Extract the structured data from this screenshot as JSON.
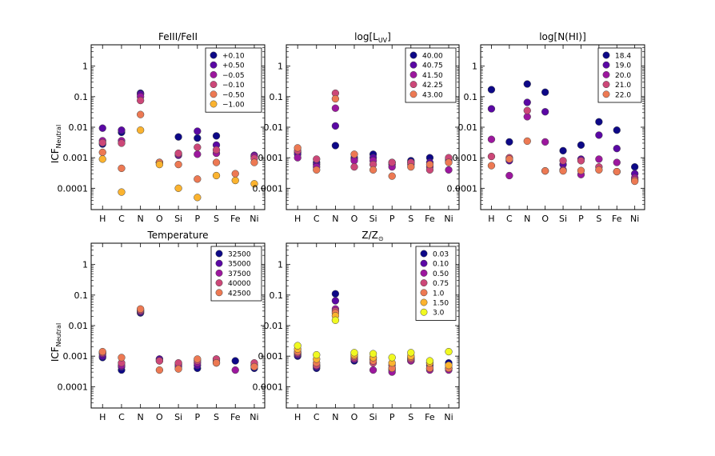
{
  "figure": {
    "ylabel_main": "ICF",
    "ylabel_sub": "Neutral"
  },
  "chart_data": [
    {
      "type": "scatter",
      "title": "FeIII/FeII",
      "categories": [
        "H",
        "C",
        "N",
        "O",
        "Si",
        "P",
        "S",
        "Fe",
        "Ni"
      ],
      "ylim": [
        2e-05,
        5
      ],
      "yscale": "log",
      "yticks": [
        "1",
        "0.1",
        "0.01",
        "0.001",
        "0.0001"
      ],
      "ytick_values": [
        1,
        0.1,
        0.01,
        0.001,
        0.0001
      ],
      "legend_loc": "top-right",
      "series": [
        {
          "name": "+0.10",
          "color": "#0d0887",
          "values": [
            0.0028,
            0.0068,
            0.13,
            0.0007,
            0.0048,
            0.0044,
            0.0052,
            null,
            0.0011
          ]
        },
        {
          "name": "+0.50",
          "color": "#5a08a4",
          "values": [
            0.0093,
            0.008,
            0.12,
            0.0007,
            0.0012,
            0.0074,
            0.0026,
            null,
            0.0012
          ]
        },
        {
          "name": "−0.05",
          "color": "#9c179e",
          "values": [
            0.0036,
            0.0036,
            0.1,
            0.0007,
            0.0013,
            0.0013,
            0.0014,
            null,
            0.0011
          ]
        },
        {
          "name": "−0.10",
          "color": "#cc4778",
          "values": [
            0.0031,
            0.003,
            0.075,
            0.0007,
            0.0014,
            0.0022,
            0.0018,
            null,
            0.00095
          ]
        },
        {
          "name": "−0.50",
          "color": "#ed7953",
          "values": [
            0.0015,
            0.00045,
            0.026,
            0.0007,
            0.0006,
            0.0002,
            0.0007,
            0.0003,
            0.0007
          ]
        },
        {
          "name": "−1.00",
          "color": "#fbb32f",
          "values": [
            0.0009,
            7.5e-05,
            0.008,
            0.0006,
            0.0001,
            5e-05,
            0.00026,
            0.00018,
            0.00014
          ]
        }
      ]
    },
    {
      "type": "scatter",
      "title": "log[L",
      "title_sub": "UV",
      "title_suffix": "]",
      "categories": [
        "H",
        "C",
        "N",
        "O",
        "Si",
        "P",
        "S",
        "Fe",
        "Ni"
      ],
      "ylim": [
        2e-05,
        5
      ],
      "yscale": "log",
      "yticks": [
        "1",
        "0.1",
        "0.01",
        "0.001",
        "0.0001"
      ],
      "ytick_values": [
        1,
        0.1,
        0.01,
        0.001,
        0.0001
      ],
      "legend_loc": "top-right",
      "series": [
        {
          "name": "40.00",
          "color": "#0d0887",
          "values": [
            0.0015,
            0.0007,
            0.0025,
            0.001,
            0.0013,
            0.0007,
            0.0008,
            0.001,
            0.0009
          ]
        },
        {
          "name": "40.75",
          "color": "#5a08a4",
          "values": [
            0.0013,
            0.0006,
            0.011,
            0.0009,
            0.001,
            0.0006,
            0.0007,
            0.0007,
            0.0008
          ]
        },
        {
          "name": "41.50",
          "color": "#9c179e",
          "values": [
            0.001,
            0.0005,
            0.042,
            0.0008,
            0.0008,
            0.0005,
            0.0006,
            0.0005,
            0.0004
          ]
        },
        {
          "name": "42.25",
          "color": "#cc4778",
          "values": [
            0.0017,
            0.0009,
            0.13,
            0.0005,
            0.0006,
            0.0007,
            0.0007,
            0.0004,
            0.001
          ]
        },
        {
          "name": "43.00",
          "color": "#ed7953",
          "values": [
            0.0021,
            0.0004,
            0.085,
            0.0013,
            0.0004,
            0.00025,
            0.0005,
            0.0006,
            0.0007
          ]
        }
      ]
    },
    {
      "type": "scatter",
      "title": "log[N(HI)]",
      "categories": [
        "H",
        "C",
        "N",
        "O",
        "Si",
        "P",
        "S",
        "Fe",
        "Ni"
      ],
      "ylim": [
        2e-05,
        5
      ],
      "yscale": "log",
      "yticks": [
        "1",
        "0.1",
        "0.01",
        "0.001",
        "0.0001"
      ],
      "ytick_values": [
        1,
        0.1,
        0.01,
        0.001,
        0.0001
      ],
      "legend_loc": "top-right",
      "series": [
        {
          "name": "18.4",
          "color": "#0d0887",
          "values": [
            0.17,
            0.0033,
            0.26,
            0.14,
            0.0017,
            0.0026,
            0.015,
            0.008,
            0.0005
          ]
        },
        {
          "name": "19.0",
          "color": "#5a08a4",
          "values": [
            0.04,
            0.0008,
            0.065,
            0.032,
            0.0006,
            0.0009,
            0.0055,
            0.002,
            0.0003
          ]
        },
        {
          "name": "20.0",
          "color": "#9c179e",
          "values": [
            0.004,
            0.00026,
            0.022,
            0.0033,
            0.0004,
            0.00028,
            0.0009,
            0.0007,
            0.00022
          ]
        },
        {
          "name": "21.0",
          "color": "#cc4778",
          "values": [
            0.0011,
            0.001,
            0.035,
            0.00037,
            0.0008,
            0.0008,
            0.0005,
            0.00035,
            0.00019
          ]
        },
        {
          "name": "22.0",
          "color": "#ed7953",
          "values": [
            0.00055,
            0.0009,
            0.0035,
            0.00037,
            0.00037,
            0.00038,
            0.0004,
            0.00035,
            0.00017
          ]
        }
      ]
    },
    {
      "type": "scatter",
      "title": "Temperature",
      "categories": [
        "H",
        "C",
        "N",
        "O",
        "Si",
        "P",
        "S",
        "Fe",
        "Ni"
      ],
      "ylim": [
        2e-05,
        5
      ],
      "yscale": "log",
      "yticks": [
        "1",
        "0.1",
        "0.01",
        "0.001",
        "0.0001"
      ],
      "ytick_values": [
        1,
        0.1,
        0.01,
        0.001,
        0.0001
      ],
      "legend_loc": "top-right",
      "series": [
        {
          "name": "32500",
          "color": "#0d0887",
          "values": [
            0.0009,
            0.00035,
            0.026,
            0.0008,
            0.00055,
            0.0004,
            0.0006,
            0.0007,
            0.0004
          ]
        },
        {
          "name": "35000",
          "color": "#5a08a4",
          "values": [
            0.001,
            0.00045,
            0.028,
            0.0008,
            0.00045,
            0.0005,
            0.0007,
            null,
            0.0005
          ]
        },
        {
          "name": "37500",
          "color": "#9c179e",
          "values": [
            0.0012,
            0.0005,
            0.03,
            0.0007,
            0.0005,
            0.0006,
            0.0008,
            0.00035,
            0.0005
          ]
        },
        {
          "name": "40000",
          "color": "#cc4778",
          "values": [
            0.0013,
            0.0006,
            0.032,
            0.0007,
            0.0006,
            0.0007,
            0.0008,
            null,
            0.0006
          ]
        },
        {
          "name": "42500",
          "color": "#ed7953",
          "values": [
            0.0014,
            0.0009,
            0.035,
            0.00035,
            0.00038,
            0.0008,
            0.0006,
            null,
            0.00045
          ]
        }
      ]
    },
    {
      "type": "scatter",
      "title": "Z/Z",
      "title_sub": "⊙",
      "categories": [
        "H",
        "C",
        "N",
        "O",
        "Si",
        "P",
        "S",
        "Fe",
        "Ni"
      ],
      "ylim": [
        2e-05,
        5
      ],
      "yscale": "log",
      "yticks": [
        "1",
        "0.1",
        "0.01",
        "0.001",
        "0.0001"
      ],
      "ytick_values": [
        1,
        0.1,
        0.01,
        0.001,
        0.0001
      ],
      "legend_loc": "top-right",
      "series": [
        {
          "name": "0.03",
          "color": "#0d0887",
          "values": [
            0.001,
            0.0004,
            0.11,
            0.0007,
            0.0008,
            0.00035,
            0.0007,
            0.0006,
            0.0006
          ]
        },
        {
          "name": "0.10",
          "color": "#5a08a4",
          "values": [
            0.0011,
            0.00045,
            0.065,
            0.0008,
            0.0009,
            0.0004,
            0.0008,
            0.0005,
            0.0004
          ]
        },
        {
          "name": "0.50",
          "color": "#9c179e",
          "values": [
            0.0012,
            0.0005,
            0.035,
            0.0008,
            0.00035,
            0.0003,
            0.0007,
            0.00035,
            0.00035
          ]
        },
        {
          "name": "0.75",
          "color": "#cc4778",
          "values": [
            0.0013,
            0.0005,
            0.03,
            0.0009,
            0.0006,
            0.0005,
            0.0008,
            0.0004,
            0.0004
          ]
        },
        {
          "name": "1.0",
          "color": "#ed7953",
          "values": [
            0.0014,
            0.0006,
            0.026,
            0.001,
            0.0007,
            0.0004,
            0.0009,
            0.0004,
            0.0004
          ]
        },
        {
          "name": "1.50",
          "color": "#fbb32f",
          "values": [
            0.0017,
            0.0008,
            0.021,
            0.0011,
            0.0009,
            0.0006,
            0.001,
            0.0006,
            0.0005
          ]
        },
        {
          "name": "3.0",
          "color": "#f0f921",
          "values": [
            0.0022,
            0.0011,
            0.015,
            0.0013,
            0.0012,
            0.0009,
            0.0013,
            0.0007,
            0.0014
          ]
        }
      ]
    }
  ]
}
